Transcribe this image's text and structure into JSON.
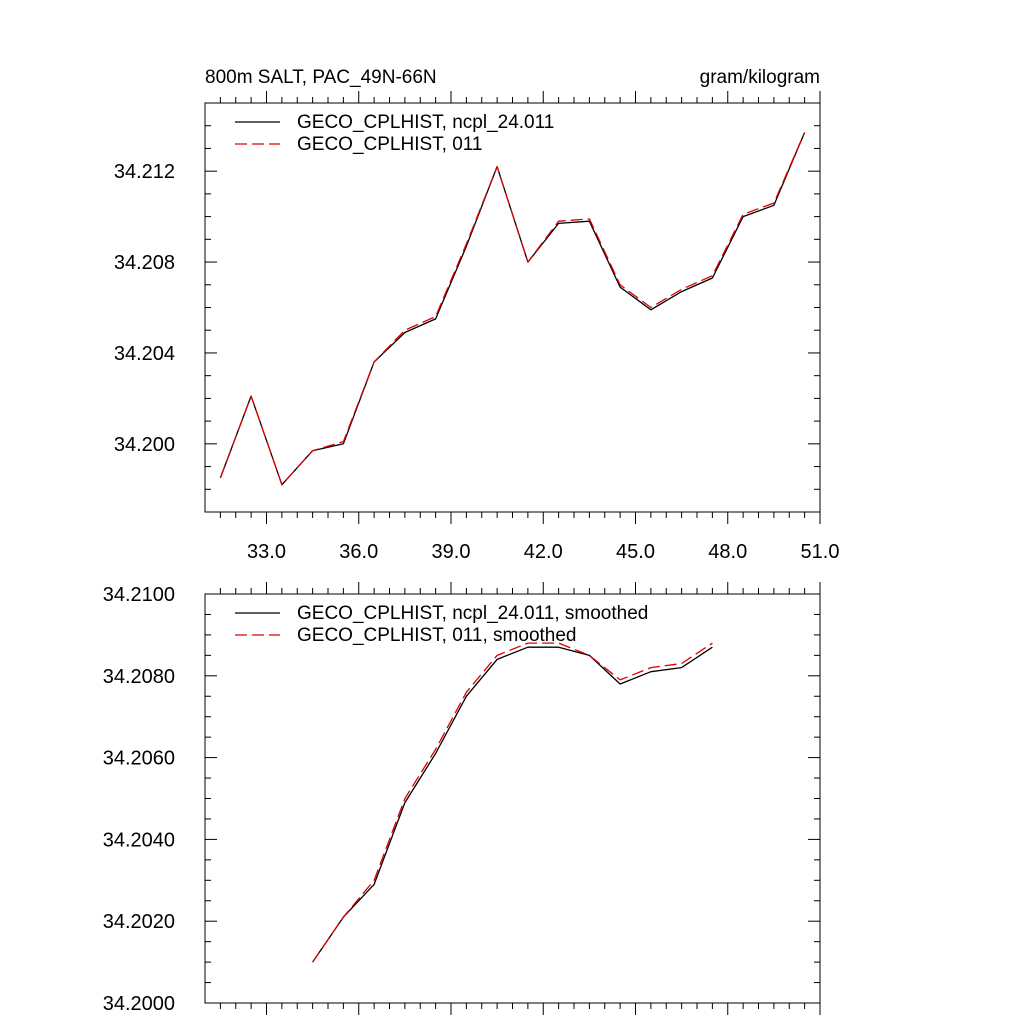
{
  "chart_data": [
    {
      "type": "line",
      "title_left": "800m SALT, PAC_49N-66N",
      "title_right": "gram/kilogram",
      "xlabel": "",
      "ylabel": "",
      "xlim": [
        31.0,
        51.0
      ],
      "ylim": [
        34.197,
        34.215
      ],
      "x_ticks": [
        33.0,
        36.0,
        39.0,
        42.0,
        45.0,
        48.0,
        51.0
      ],
      "x_tick_labels": [
        "33.0",
        "36.0",
        "39.0",
        "42.0",
        "45.0",
        "48.0",
        "51.0"
      ],
      "y_ticks": [
        34.2,
        34.204,
        34.208,
        34.212
      ],
      "y_tick_labels": [
        "34.200",
        "34.204",
        "34.208",
        "34.212"
      ],
      "legend_position": "top-left",
      "x": [
        31.5,
        32.5,
        33.5,
        34.5,
        35.5,
        36.5,
        37.5,
        38.5,
        39.5,
        40.5,
        41.5,
        42.5,
        43.5,
        44.5,
        45.5,
        46.5,
        47.5,
        48.5,
        49.5,
        50.5
      ],
      "series": [
        {
          "name": "GECO_CPLHIST, ncpl_24.011",
          "color": "#000000",
          "dash": "solid",
          "values": [
            34.1985,
            34.2021,
            34.1982,
            34.1997,
            34.2,
            34.2036,
            34.2049,
            34.2055,
            34.2087,
            34.2122,
            34.208,
            34.2097,
            34.2098,
            34.2069,
            34.2059,
            34.2067,
            34.2073,
            34.21,
            34.2105,
            34.2137
          ]
        },
        {
          "name": "GECO_CPLHIST, 011",
          "color": "#e00000",
          "dash": "dashed",
          "values": [
            34.1985,
            34.2021,
            34.1982,
            34.1997,
            34.2001,
            34.2036,
            34.205,
            34.2056,
            34.2088,
            34.2122,
            34.208,
            34.2098,
            34.2099,
            34.207,
            34.206,
            34.2068,
            34.2074,
            34.2101,
            34.2106,
            34.2137
          ]
        }
      ]
    },
    {
      "type": "line",
      "xlabel": "",
      "ylabel": "",
      "xlim": [
        31.0,
        51.0
      ],
      "ylim": [
        34.2,
        34.21
      ],
      "x_ticks": [
        33.0,
        36.0,
        39.0,
        42.0,
        45.0,
        48.0,
        51.0
      ],
      "x_tick_labels": [],
      "y_ticks": [
        34.2,
        34.202,
        34.204,
        34.206,
        34.208,
        34.21
      ],
      "y_tick_labels": [
        "34.2000",
        "34.2020",
        "34.2040",
        "34.2060",
        "34.2080",
        "34.2100"
      ],
      "legend_position": "top-left",
      "x": [
        34.5,
        35.5,
        36.5,
        37.5,
        38.5,
        39.5,
        40.5,
        41.5,
        42.5,
        43.5,
        44.5,
        45.5,
        46.5,
        47.5
      ],
      "series": [
        {
          "name": "GECO_CPLHIST, ncpl_24.011, smoothed",
          "color": "#000000",
          "dash": "solid",
          "values": [
            34.201,
            34.2021,
            34.2029,
            34.2049,
            34.2061,
            34.2075,
            34.2084,
            34.2087,
            34.2087,
            34.2085,
            34.2078,
            34.2081,
            34.2082,
            34.2087
          ]
        },
        {
          "name": "GECO_CPLHIST, 011, smoothed",
          "color": "#e00000",
          "dash": "dashed",
          "values": [
            34.201,
            34.2021,
            34.203,
            34.205,
            34.2062,
            34.2076,
            34.2085,
            34.2088,
            34.2088,
            34.2085,
            34.2079,
            34.2082,
            34.2083,
            34.2088
          ]
        }
      ]
    }
  ]
}
